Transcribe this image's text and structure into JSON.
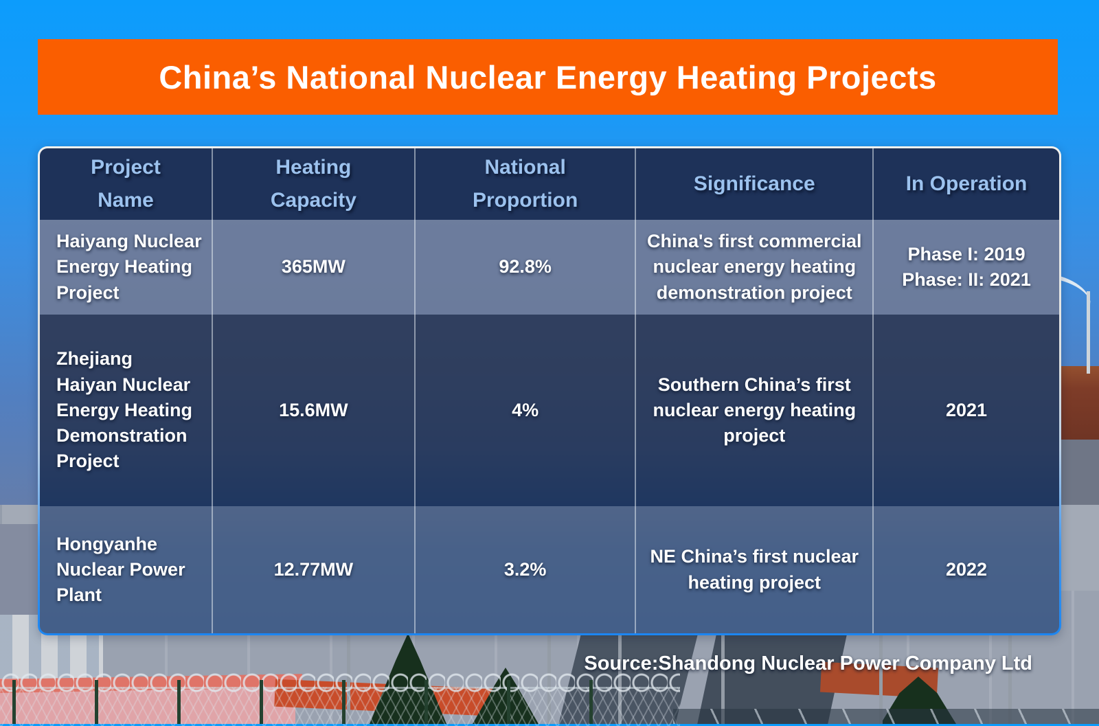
{
  "title": "China’s National Nuclear Energy Heating Projects",
  "source": "Source:Shandong Nuclear Power Company Ltd",
  "colors": {
    "banner_orange": "#fa5e00",
    "sky_top": "#0c9cfc",
    "header_bg": "#1c3057",
    "header_text": "#9cc2ee",
    "row_dark_bg": "#1a2c4f",
    "row_light_bg": "#56688e",
    "table_border_top": "#f2f1ee",
    "table_border_bottom": "#1b86f2",
    "cell_text": "#ffffff"
  },
  "table": {
    "headers": {
      "name": "Project\nName",
      "capacity": "Heating\nCapacity",
      "proportion": "National\nProportion",
      "significance": "Significance",
      "operation": "In Operation"
    },
    "rows": [
      {
        "name": "Haiyang Nuclear\nEnergy Heating\nProject",
        "capacity": "365MW",
        "proportion": "92.8%",
        "significance": "China's first commercial nuclear energy heating demonstration project",
        "operation": "Phase I: 2019\nPhase: II: 2021"
      },
      {
        "name": "Zhejiang\nHaiyan Nuclear\nEnergy Heating\nDemonstration\nProject",
        "capacity": "15.6MW",
        "proportion": "4%",
        "significance": "Southern China’s first nuclear energy heating project",
        "operation": "2021"
      },
      {
        "name": "Hongyanhe\nNuclear Power\nPlant",
        "capacity": "12.77MW",
        "proportion": "3.2%",
        "significance": "NE China’s first nuclear heating project",
        "operation": "2022"
      }
    ]
  },
  "chart_data": {
    "type": "table",
    "title": "China’s National Nuclear Energy Heating Projects",
    "columns": [
      "Project Name",
      "Heating Capacity",
      "National Proportion",
      "Significance",
      "In Operation"
    ],
    "rows": [
      [
        "Haiyang Nuclear Energy Heating Project",
        "365MW",
        "92.8%",
        "China's first commercial nuclear energy heating demonstration project",
        "Phase I: 2019; Phase: II: 2021"
      ],
      [
        "Zhejiang Haiyan Nuclear Energy Heating Demonstration Project",
        "15.6MW",
        "4%",
        "Southern China’s first nuclear energy heating project",
        "2021"
      ],
      [
        "Hongyanhe Nuclear Power Plant",
        "12.77MW",
        "3.2%",
        "NE China’s first nuclear heating project",
        "2022"
      ]
    ],
    "source": "Source:Shandong Nuclear Power Company Ltd"
  }
}
